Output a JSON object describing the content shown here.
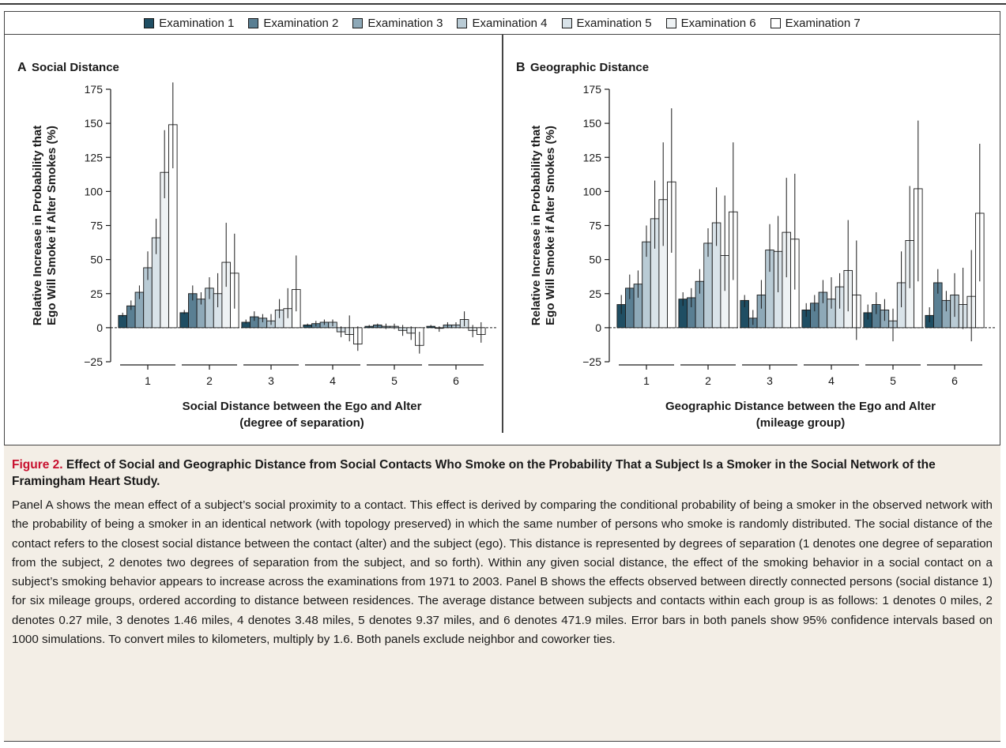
{
  "figure": {
    "legend": [
      "Examination 1",
      "Examination 2",
      "Examination 3",
      "Examination 4",
      "Examination 5",
      "Examination 6",
      "Examination 7"
    ],
    "exam_colors": [
      "#1f4e63",
      "#5a7f93",
      "#8ea9b8",
      "#b9cbd5",
      "#d9e3e9",
      "#eef2f4",
      "#ffffff"
    ],
    "caption_label": "Figure 2.",
    "caption_title": "Effect of Social and Geographic Distance from Social Contacts Who Smoke on the Probability That a Subject Is a Smoker in the Social Network of the Framingham Heart Study.",
    "caption_body": "Panel A shows the mean effect of a subject’s social proximity to a contact. This effect is derived by comparing the conditional probability of being a smoker in the observed network with the probability of being a smoker in an identical network (with topology preserved) in which the same number of persons who smoke is randomly distributed. The social distance of the contact refers to the closest social distance between the contact (alter) and the subject (ego). This distance is represented by degrees of separation (1 denotes one degree of separation from the subject, 2 denotes two degrees of separation from the subject, and so forth). Within any given social distance, the effect of the smoking behavior in a social contact on a subject’s smoking behavior appears to increase across the examinations from 1971 to 2003. Panel B shows the effects observed between directly connected persons (social distance 1) for six mileage groups, ordered according to distance between residences. The average distance between subjects and contacts within each group is as follows: 1 denotes 0 miles, 2 denotes 0.27 mile, 3 denotes 1.46 miles, 4 denotes 3.48 miles, 5 denotes 9.37 miles, and 6 denotes 471.9 miles. Error bars in both panels show 95% confidence intervals based on 1000 simulations. To convert miles to kilometers, multiply by 1.6. Both panels exclude neighbor and coworker ties."
  },
  "chart_data": [
    {
      "type": "bar",
      "panel": "A",
      "title": "Social Distance",
      "xlabel": "Social Distance between the Ego and Alter",
      "xlabel2": "(degree of separation)",
      "ylabel": "Relative Increase in Probability that",
      "ylabel2": "Ego Will Smoke if Alter Smokes (%)",
      "ylim": [
        -25,
        175
      ],
      "yticks": [
        -25,
        0,
        25,
        50,
        75,
        100,
        125,
        150,
        175
      ],
      "categories": [
        "1",
        "2",
        "3",
        "4",
        "5",
        "6"
      ],
      "series": [
        {
          "name": "Examination 1",
          "values": [
            9,
            11,
            4,
            2,
            1,
            1
          ],
          "err": [
            [
              8,
              11
            ],
            [
              10,
              13
            ],
            [
              3,
              6
            ],
            [
              1,
              3
            ],
            [
              0,
              2
            ],
            [
              0,
              2
            ]
          ]
        },
        {
          "name": "Examination 2",
          "values": [
            16,
            25,
            8,
            3,
            2,
            0
          ],
          "err": [
            [
              13,
              20
            ],
            [
              20,
              31
            ],
            [
              5,
              12
            ],
            [
              1,
              5
            ],
            [
              0,
              3
            ],
            [
              -3,
              1
            ]
          ]
        },
        {
          "name": "Examination 3",
          "values": [
            26,
            21,
            7,
            4,
            1,
            2
          ],
          "err": [
            [
              21,
              31
            ],
            [
              17,
              26
            ],
            [
              4,
              10
            ],
            [
              2,
              6
            ],
            [
              -1,
              3
            ],
            [
              0,
              4
            ]
          ]
        },
        {
          "name": "Examination 4",
          "values": [
            44,
            29,
            5,
            4,
            1,
            2
          ],
          "err": [
            [
              35,
              56
            ],
            [
              21,
              37
            ],
            [
              2,
              10
            ],
            [
              1,
              6
            ],
            [
              -1,
              3
            ],
            [
              0,
              4
            ]
          ]
        },
        {
          "name": "Examination 5",
          "values": [
            66,
            25,
            13,
            -3,
            -2,
            6
          ],
          "err": [
            [
              54,
              80
            ],
            [
              15,
              40
            ],
            [
              7,
              21
            ],
            [
              -7,
              1
            ],
            [
              -6,
              2
            ],
            [
              1,
              12
            ]
          ]
        },
        {
          "name": "Examination 6",
          "values": [
            114,
            48,
            14,
            -5,
            -4,
            -2
          ],
          "err": [
            [
              95,
              145
            ],
            [
              30,
              77
            ],
            [
              7,
              29
            ],
            [
              -10,
              9
            ],
            [
              -9,
              1
            ],
            [
              -7,
              2
            ]
          ]
        },
        {
          "name": "Examination 7",
          "values": [
            149,
            40,
            28,
            -12,
            -13,
            -5
          ],
          "err": [
            [
              117,
              180
            ],
            [
              14,
              69
            ],
            [
              12,
              53
            ],
            [
              -17,
              1
            ],
            [
              -19,
              -3
            ],
            [
              -11,
              4
            ]
          ]
        }
      ]
    },
    {
      "type": "bar",
      "panel": "B",
      "title": "Geographic Distance",
      "xlabel": "Geographic Distance between the Ego and Alter",
      "xlabel2": "(mileage group)",
      "ylabel": "Relative Increase in Probability that",
      "ylabel2": "Ego Will Smoke if Alter Smokes (%)",
      "ylim": [
        -25,
        175
      ],
      "yticks": [
        -25,
        0,
        25,
        50,
        75,
        100,
        125,
        150,
        175
      ],
      "categories": [
        "1",
        "2",
        "3",
        "4",
        "5",
        "6"
      ],
      "series": [
        {
          "name": "Examination 1",
          "values": [
            17,
            21,
            20,
            13,
            11,
            9
          ],
          "err": [
            [
              10,
              24
            ],
            [
              16,
              26
            ],
            [
              15,
              24
            ],
            [
              8,
              18
            ],
            [
              6,
              17
            ],
            [
              4,
              15
            ]
          ]
        },
        {
          "name": "Examination 2",
          "values": [
            29,
            22,
            7,
            18,
            17,
            33
          ],
          "err": [
            [
              21,
              39
            ],
            [
              15,
              29
            ],
            [
              2,
              13
            ],
            [
              12,
              24
            ],
            [
              10,
              26
            ],
            [
              25,
              43
            ]
          ]
        },
        {
          "name": "Examination 3",
          "values": [
            32,
            34,
            24,
            26,
            13,
            20
          ],
          "err": [
            [
              22,
              42
            ],
            [
              25,
              43
            ],
            [
              14,
              35
            ],
            [
              18,
              35
            ],
            [
              5,
              21
            ],
            [
              12,
              27
            ]
          ]
        },
        {
          "name": "Examination 4",
          "values": [
            63,
            62,
            57,
            21,
            5,
            24
          ],
          "err": [
            [
              52,
              75
            ],
            [
              52,
              73
            ],
            [
              41,
              76
            ],
            [
              14,
              37
            ],
            [
              -10,
              14
            ],
            [
              8,
              40
            ]
          ]
        },
        {
          "name": "Examination 5",
          "values": [
            80,
            77,
            56,
            30,
            33,
            17
          ],
          "err": [
            [
              58,
              108
            ],
            [
              60,
              103
            ],
            [
              26,
              82
            ],
            [
              14,
              40
            ],
            [
              15,
              56
            ],
            [
              -1,
              44
            ]
          ]
        },
        {
          "name": "Examination 6",
          "values": [
            94,
            53,
            70,
            42,
            64,
            23
          ],
          "err": [
            [
              60,
              136
            ],
            [
              27,
              97
            ],
            [
              37,
              110
            ],
            [
              12,
              79
            ],
            [
              29,
              104
            ],
            [
              -10,
              57
            ]
          ]
        },
        {
          "name": "Examination 7",
          "values": [
            107,
            85,
            65,
            24,
            102,
            84
          ],
          "err": [
            [
              55,
              161
            ],
            [
              35,
              136
            ],
            [
              28,
              113
            ],
            [
              -9,
              64
            ],
            [
              34,
              152
            ],
            [
              34,
              135
            ]
          ]
        }
      ]
    }
  ]
}
